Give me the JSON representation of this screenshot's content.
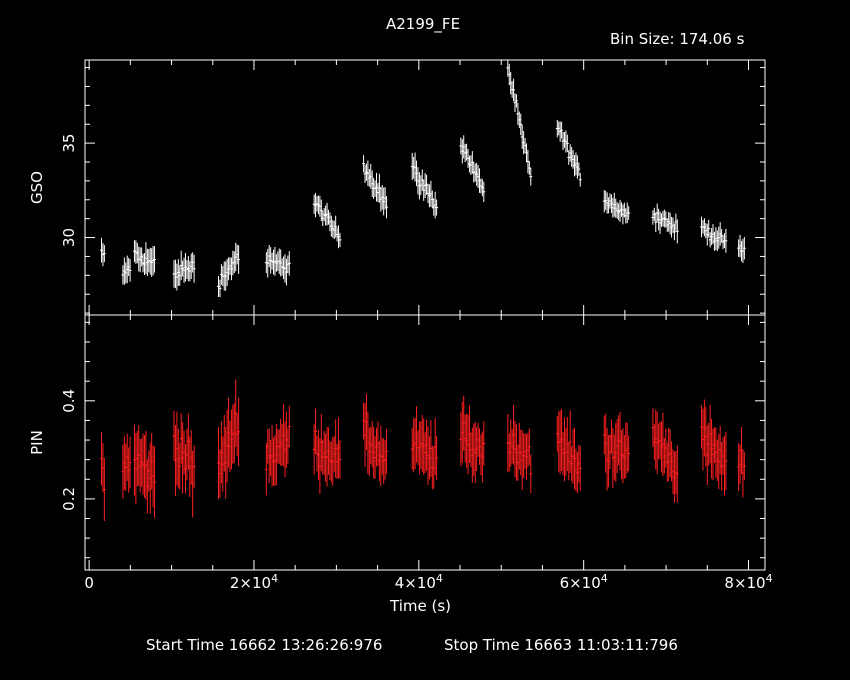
{
  "chart_data": {
    "type": "scatter",
    "title": "A2199_FE",
    "bin_label": "Bin Size:  174.06 s",
    "xlabel": "Time (s)",
    "xlim": [
      -500,
      82000
    ],
    "x_ticks": [
      {
        "value": 0,
        "mant": "0",
        "exp": ""
      },
      {
        "value": 20000,
        "mant": "2×10",
        "exp": "4"
      },
      {
        "value": 40000,
        "mant": "4×10",
        "exp": "4"
      },
      {
        "value": 60000,
        "mant": "6×10",
        "exp": "4"
      },
      {
        "value": 80000,
        "mant": "8×10",
        "exp": "4"
      }
    ],
    "footer": {
      "start": "Start Time 16662 13:26:26:976",
      "stop": "Stop Time 16663 11:03:11:796"
    },
    "panels": [
      {
        "name": "gso",
        "ylabel": "GSO",
        "ylim": [
          25.9,
          39.4
        ],
        "yticks": [
          30,
          35
        ],
        "color": "#ffffff",
        "segments": [
          {
            "x0": 1500,
            "x1": 2000,
            "y0": 29.3,
            "y1": 28.7,
            "noise": 0.6,
            "err": 0.5
          },
          {
            "x0": 4100,
            "x1": 5000,
            "y0": 28.0,
            "y1": 28.5,
            "noise": 0.6,
            "err": 0.6
          },
          {
            "x0": 5500,
            "x1": 8000,
            "y0": 29.0,
            "y1": 28.6,
            "noise": 0.7,
            "err": 0.7
          },
          {
            "x0": 10300,
            "x1": 12800,
            "y0": 28.1,
            "y1": 28.5,
            "noise": 0.6,
            "err": 0.6
          },
          {
            "x0": 15700,
            "x1": 18200,
            "y0": 27.6,
            "y1": 29.1,
            "noise": 0.6,
            "err": 0.6
          },
          {
            "x0": 21500,
            "x1": 24300,
            "y0": 28.7,
            "y1": 28.5,
            "noise": 0.6,
            "err": 0.6
          },
          {
            "x0": 27300,
            "x1": 30600,
            "y0": 31.9,
            "y1": 29.9,
            "noise": 0.5,
            "err": 0.5
          },
          {
            "x0": 33300,
            "x1": 36200,
            "y0": 33.8,
            "y1": 31.7,
            "noise": 0.6,
            "err": 0.6
          },
          {
            "x0": 39200,
            "x1": 42200,
            "y0": 33.7,
            "y1": 31.6,
            "noise": 0.6,
            "err": 0.6
          },
          {
            "x0": 45100,
            "x1": 48000,
            "y0": 35.0,
            "y1": 32.4,
            "noise": 0.5,
            "err": 0.5
          },
          {
            "x0": 50800,
            "x1": 53700,
            "y0": 39.0,
            "y1": 33.0,
            "noise": 0.5,
            "err": 0.5
          },
          {
            "x0": 56800,
            "x1": 59600,
            "y0": 35.9,
            "y1": 33.2,
            "noise": 0.5,
            "err": 0.5
          },
          {
            "x0": 62500,
            "x1": 65500,
            "y0": 32.1,
            "y1": 31.1,
            "noise": 0.5,
            "err": 0.5
          },
          {
            "x0": 68400,
            "x1": 71500,
            "y0": 31.3,
            "y1": 30.4,
            "noise": 0.5,
            "err": 0.5
          },
          {
            "x0": 74300,
            "x1": 77300,
            "y0": 30.5,
            "y1": 29.7,
            "noise": 0.5,
            "err": 0.5
          },
          {
            "x0": 78800,
            "x1": 79600,
            "y0": 29.4,
            "y1": 29.4,
            "noise": 0.4,
            "err": 0.5
          }
        ]
      },
      {
        "name": "pin",
        "ylabel": "PIN",
        "ylim": [
          0.055,
          0.575
        ],
        "yticks": [
          0.2,
          0.4
        ],
        "color": "#ff2020",
        "segments": [
          {
            "x0": 1500,
            "x1": 2000,
            "y0": 0.28,
            "y1": 0.24,
            "noise": 0.05,
            "err": 0.05
          },
          {
            "x0": 4100,
            "x1": 5000,
            "y0": 0.26,
            "y1": 0.28,
            "noise": 0.05,
            "err": 0.05
          },
          {
            "x0": 5500,
            "x1": 8000,
            "y0": 0.28,
            "y1": 0.24,
            "noise": 0.06,
            "err": 0.06
          },
          {
            "x0": 10300,
            "x1": 12800,
            "y0": 0.32,
            "y1": 0.25,
            "noise": 0.06,
            "err": 0.06
          },
          {
            "x0": 15700,
            "x1": 18200,
            "y0": 0.26,
            "y1": 0.37,
            "noise": 0.06,
            "err": 0.06
          },
          {
            "x0": 21500,
            "x1": 24300,
            "y0": 0.28,
            "y1": 0.32,
            "noise": 0.05,
            "err": 0.05
          },
          {
            "x0": 27300,
            "x1": 30600,
            "y0": 0.31,
            "y1": 0.28,
            "noise": 0.05,
            "err": 0.05
          },
          {
            "x0": 33300,
            "x1": 36200,
            "y0": 0.33,
            "y1": 0.27,
            "noise": 0.05,
            "err": 0.05
          },
          {
            "x0": 39200,
            "x1": 42200,
            "y0": 0.31,
            "y1": 0.28,
            "noise": 0.05,
            "err": 0.05
          },
          {
            "x0": 45100,
            "x1": 48000,
            "y0": 0.33,
            "y1": 0.29,
            "noise": 0.05,
            "err": 0.05
          },
          {
            "x0": 50800,
            "x1": 53700,
            "y0": 0.32,
            "y1": 0.28,
            "noise": 0.05,
            "err": 0.05
          },
          {
            "x0": 56800,
            "x1": 59600,
            "y0": 0.32,
            "y1": 0.26,
            "noise": 0.05,
            "err": 0.05
          },
          {
            "x0": 62500,
            "x1": 65500,
            "y0": 0.31,
            "y1": 0.29,
            "noise": 0.05,
            "err": 0.05
          },
          {
            "x0": 68400,
            "x1": 71500,
            "y0": 0.33,
            "y1": 0.26,
            "noise": 0.05,
            "err": 0.05
          },
          {
            "x0": 74300,
            "x1": 77300,
            "y0": 0.33,
            "y1": 0.26,
            "noise": 0.05,
            "err": 0.05
          },
          {
            "x0": 78800,
            "x1": 79600,
            "y0": 0.28,
            "y1": 0.27,
            "noise": 0.04,
            "err": 0.04
          }
        ]
      }
    ]
  }
}
